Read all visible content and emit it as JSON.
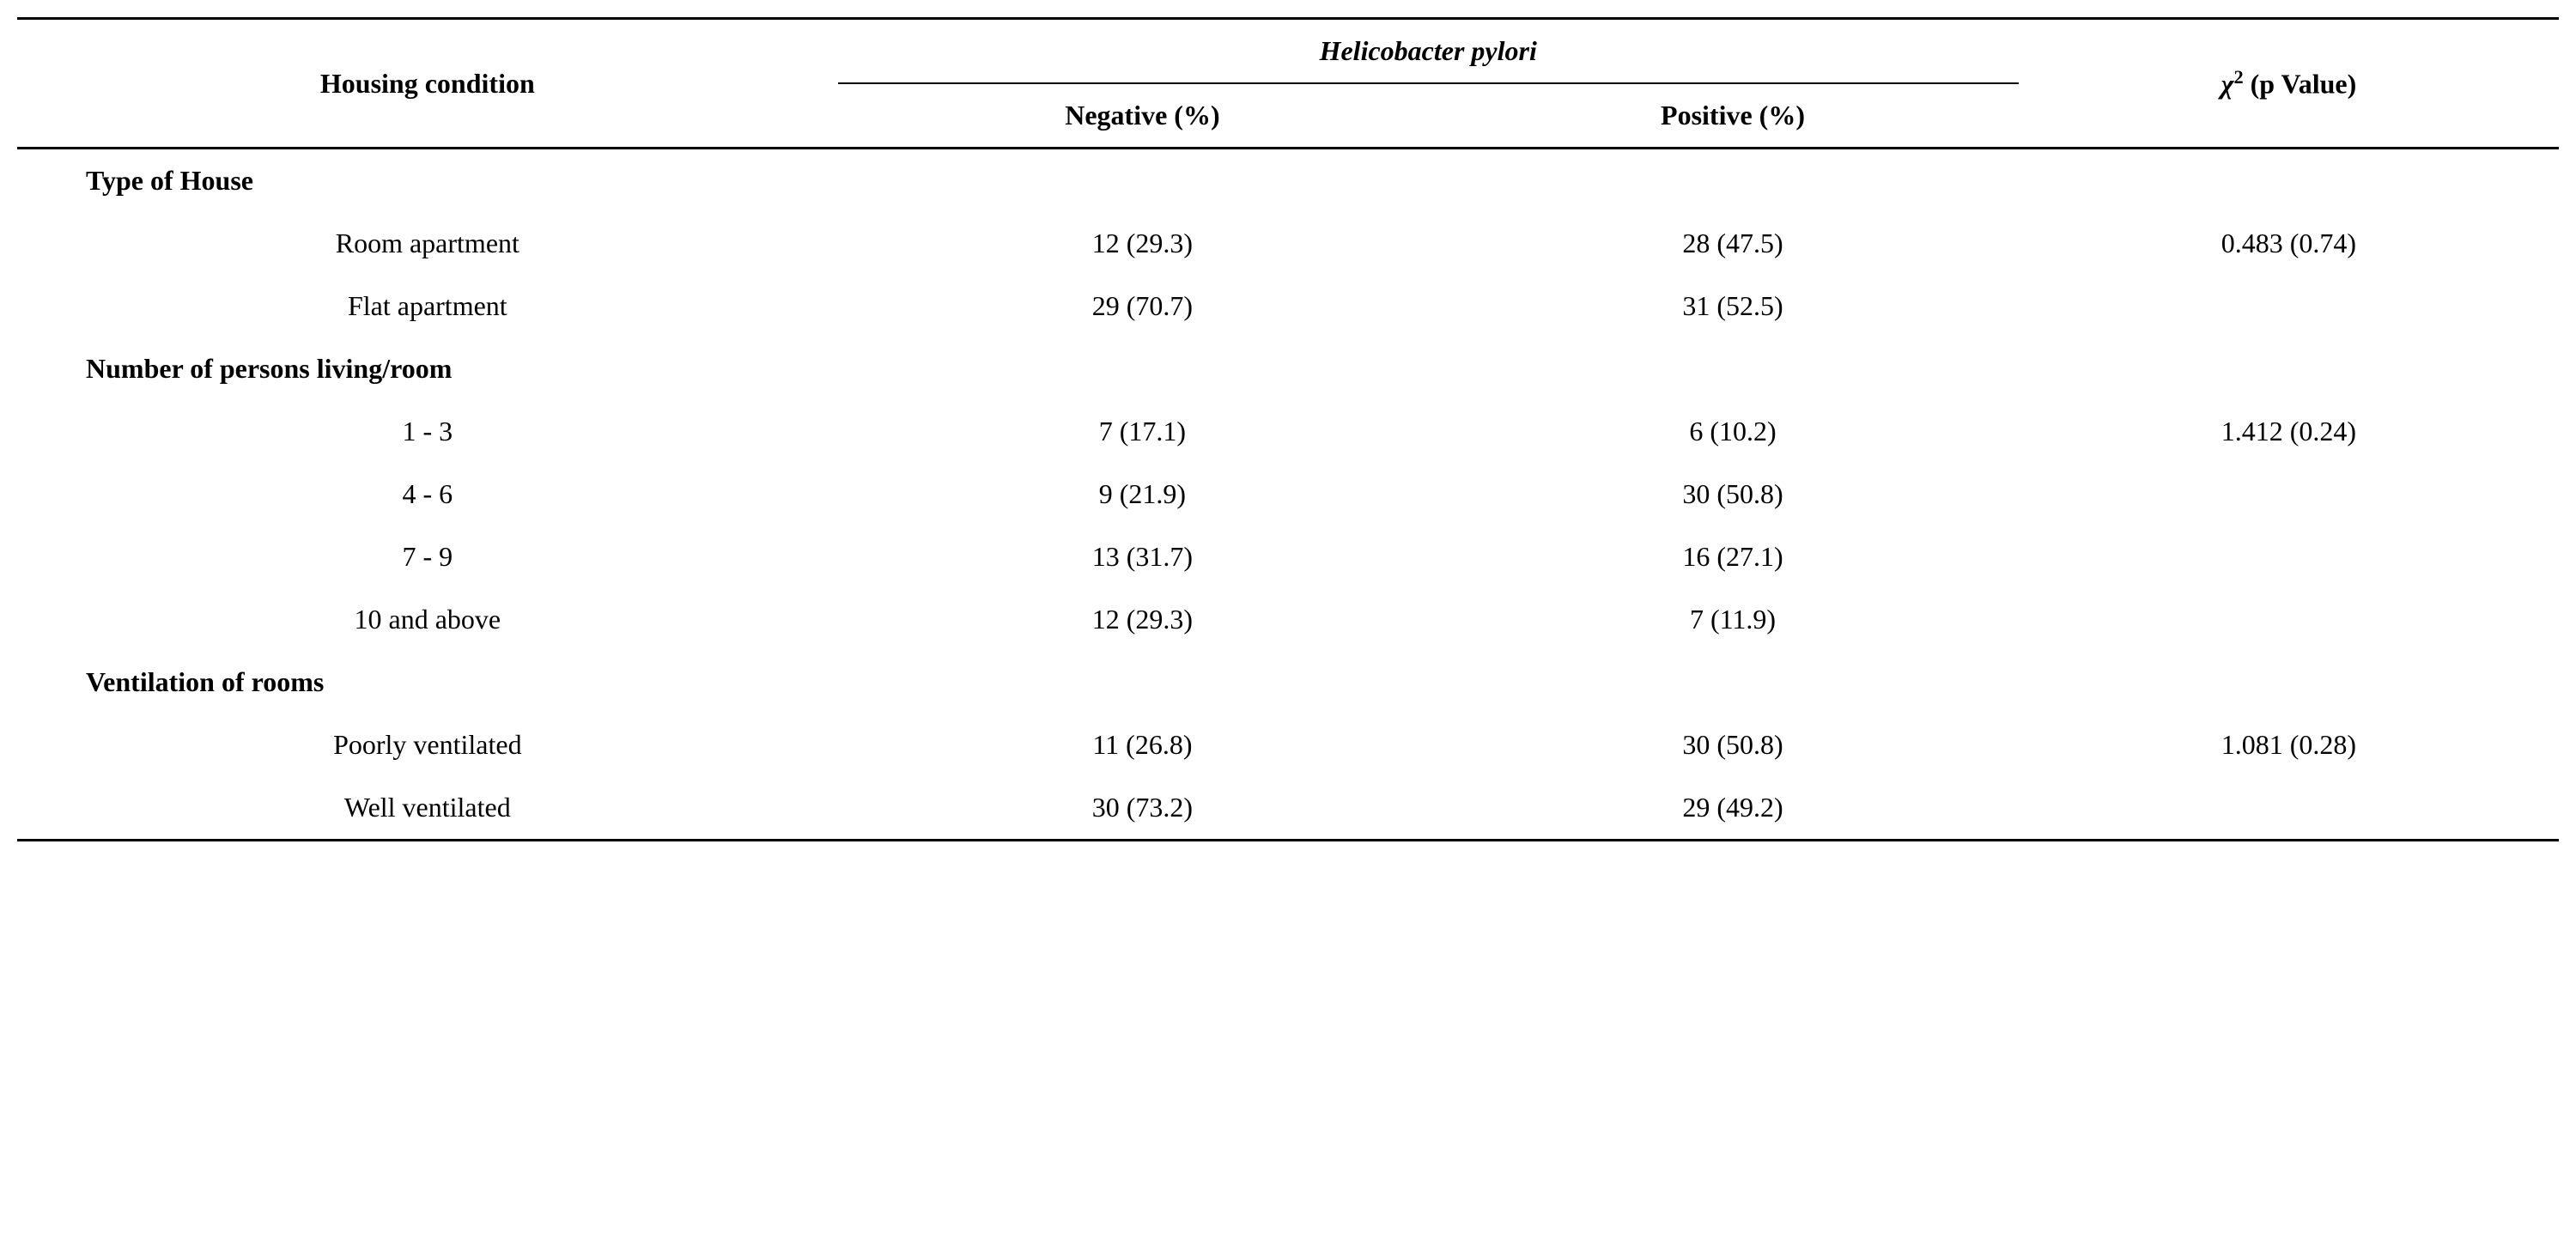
{
  "table": {
    "type": "table",
    "background_color": "#ffffff",
    "text_color": "#000000",
    "font_family": "Times New Roman",
    "base_font_size": 32,
    "border_color": "#000000",
    "outer_border_width": 3,
    "inner_border_width": 2,
    "headers": {
      "col1": "Housing condition",
      "span_header": "Helicobacter pylori",
      "col2": "Negative (%)",
      "col3": "Positive (%)",
      "col4_prefix": "χ",
      "col4_sup": "2",
      "col4_suffix": " (p Value)"
    },
    "sections": [
      {
        "title": "Type of House",
        "rows": [
          {
            "label": "Room apartment",
            "negative": "12 (29.3)",
            "positive": "28 (47.5)",
            "chi": "0.483 (0.74)"
          },
          {
            "label": "Flat apartment",
            "negative": "29 (70.7)",
            "positive": "31 (52.5)",
            "chi": ""
          }
        ]
      },
      {
        "title": "Number of persons living/room",
        "rows": [
          {
            "label": "1 - 3",
            "negative": "7 (17.1)",
            "positive": "6 (10.2)",
            "chi": "1.412 (0.24)"
          },
          {
            "label": "4 - 6",
            "negative": "9 (21.9)",
            "positive": "30 (50.8)",
            "chi": ""
          },
          {
            "label": "7 - 9",
            "negative": "13 (31.7)",
            "positive": "16 (27.1)",
            "chi": ""
          },
          {
            "label": "10 and above",
            "negative": "12 (29.3)",
            "positive": "7 (11.9)",
            "chi": ""
          }
        ]
      },
      {
        "title": "Ventilation of rooms",
        "rows": [
          {
            "label": "Poorly ventilated",
            "negative": "11 (26.8)",
            "positive": "30 (50.8)",
            "chi": "1.081 (0.28)"
          },
          {
            "label": "Well ventilated",
            "negative": "30 (73.2)",
            "positive": "29 (49.2)",
            "chi": ""
          }
        ]
      }
    ]
  }
}
